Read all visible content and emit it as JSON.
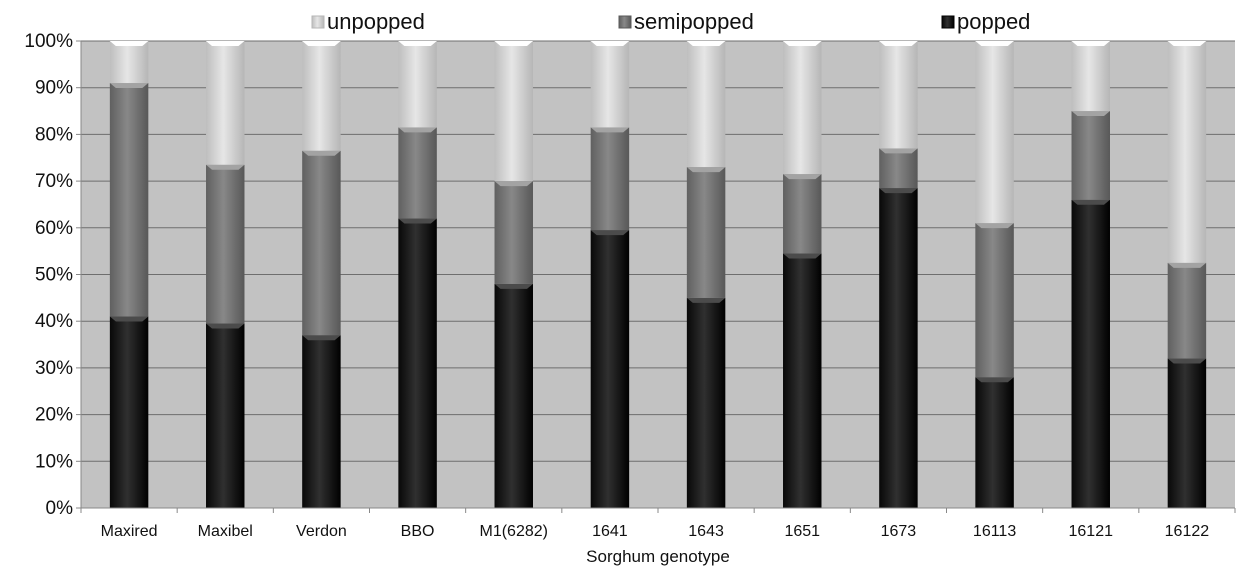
{
  "chart_data": {
    "type": "bar",
    "stacked": true,
    "categories": [
      "Maxired",
      "Maxibel",
      "Verdon",
      "BBO",
      "M1(6282)",
      "1641",
      "1643",
      "1651",
      "1673",
      "16113",
      "16121",
      "16122"
    ],
    "series": [
      {
        "name": "popped",
        "color": "#1e1e1e",
        "values": [
          41,
          39.5,
          37,
          62,
          48,
          59.5,
          45,
          54.5,
          68.5,
          28,
          66,
          32
        ]
      },
      {
        "name": "semipopped",
        "color": "#767676",
        "values": [
          50,
          34,
          39.5,
          19.5,
          22,
          22,
          28,
          17,
          8.5,
          33,
          19,
          20.5
        ]
      },
      {
        "name": "unpopped",
        "color": "#d4d4d4",
        "values": [
          9,
          26.5,
          23.5,
          18.5,
          30,
          18.5,
          27,
          28.5,
          23,
          39,
          15,
          47.5
        ]
      }
    ],
    "legend_order": [
      "unpopped",
      "semipopped",
      "popped"
    ],
    "legend_position": "top",
    "xlabel": "Sorghum genotype",
    "ylabel": "",
    "ylim": [
      0,
      100
    ],
    "y_ticks": [
      "0%",
      "10%",
      "20%",
      "30%",
      "40%",
      "50%",
      "60%",
      "70%",
      "80%",
      "90%",
      "100%"
    ],
    "plot_background": "#c2c2c2",
    "grid": true
  }
}
